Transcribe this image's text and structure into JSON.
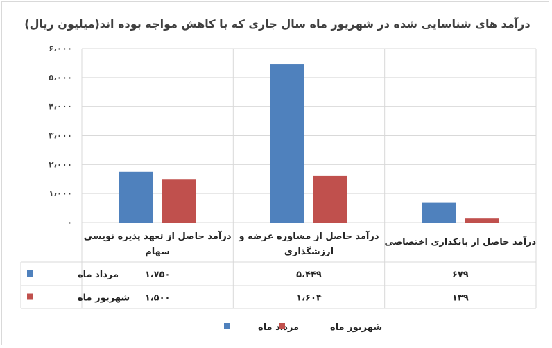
{
  "chart_data": {
    "type": "bar",
    "title": "درآمد های شناسایی شده در شهریور ماه سال جاری که با کاهش مواجه بوده اند(میلیون ریال)",
    "categories": [
      [
        "درآمد حاصل از تعهد پذیره نویسی",
        "سهام"
      ],
      [
        "درآمد حاصل از مشاوره عرضه و",
        "ارزشگذاری"
      ],
      [
        "درآمد حاصل از بانکداری اختصاصی"
      ]
    ],
    "series": [
      {
        "name": "مرداد ماه",
        "color": "#4f81bd",
        "values": [
          1750,
          5449,
          679
        ],
        "labels": [
          "۱،۷۵۰",
          "۵،۴۴۹",
          "۶۷۹"
        ]
      },
      {
        "name": "شهریور ماه",
        "color": "#c0504d",
        "values": [
          1500,
          1604,
          139
        ],
        "labels": [
          "۱،۵۰۰",
          "۱،۶۰۴",
          "۱۳۹"
        ]
      }
    ],
    "ylim": [
      0,
      6000
    ],
    "yticks": [
      0,
      1000,
      2000,
      3000,
      4000,
      5000,
      6000
    ],
    "ytick_labels": [
      "۰",
      "۱،۰۰۰",
      "۲،۰۰۰",
      "۳،۰۰۰",
      "۴،۰۰۰",
      "۵،۰۰۰",
      "۶،۰۰۰"
    ],
    "grid": true,
    "legend": "bottom",
    "data_table": true
  }
}
